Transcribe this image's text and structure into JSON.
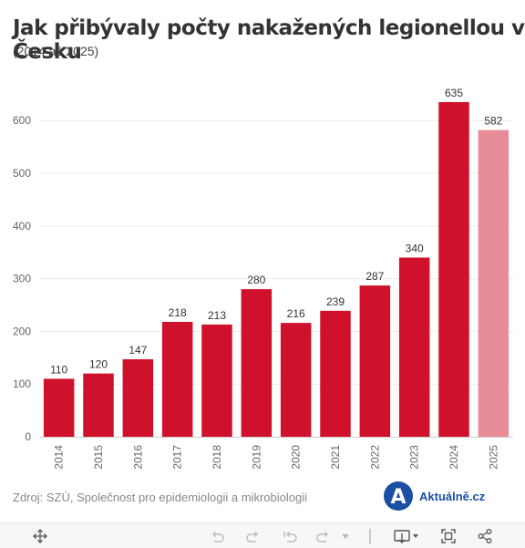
{
  "chart_data": {
    "type": "bar",
    "title": "Jak přibývaly počty nakažených legionellou v Česku",
    "subtitle": "(2014 až 2025)",
    "categories": [
      "2014",
      "2015",
      "2016",
      "2017",
      "2018",
      "2019",
      "2020",
      "2021",
      "2022",
      "2023",
      "2024",
      "2025"
    ],
    "values": [
      110,
      120,
      147,
      218,
      213,
      280,
      216,
      239,
      287,
      340,
      635,
      582
    ],
    "highlight_last": true,
    "colors": {
      "bar": "#d0112b",
      "bar_last": "#e78d97",
      "grid": "#ececec",
      "tick": "#666666",
      "label": "#333333"
    },
    "ylim": [
      0,
      700
    ],
    "yticks": [
      0,
      100,
      200,
      300,
      400,
      500,
      600
    ],
    "grid": true,
    "xlabel": "",
    "ylabel": ""
  },
  "source": "Zdroj: SZÚ, Společnost pro epidemiologii a mikrobiologii",
  "logo": {
    "letter": "A",
    "text": "Aktuálně.cz",
    "color": "#1a4fa3"
  },
  "toolbar": {
    "icons": [
      "move-icon",
      "undo-icon",
      "redo-icon",
      "reset-icon",
      "redo-multi-icon",
      "dropdown-icon",
      "download-icon",
      "fullscreen-icon",
      "share-icon"
    ]
  }
}
